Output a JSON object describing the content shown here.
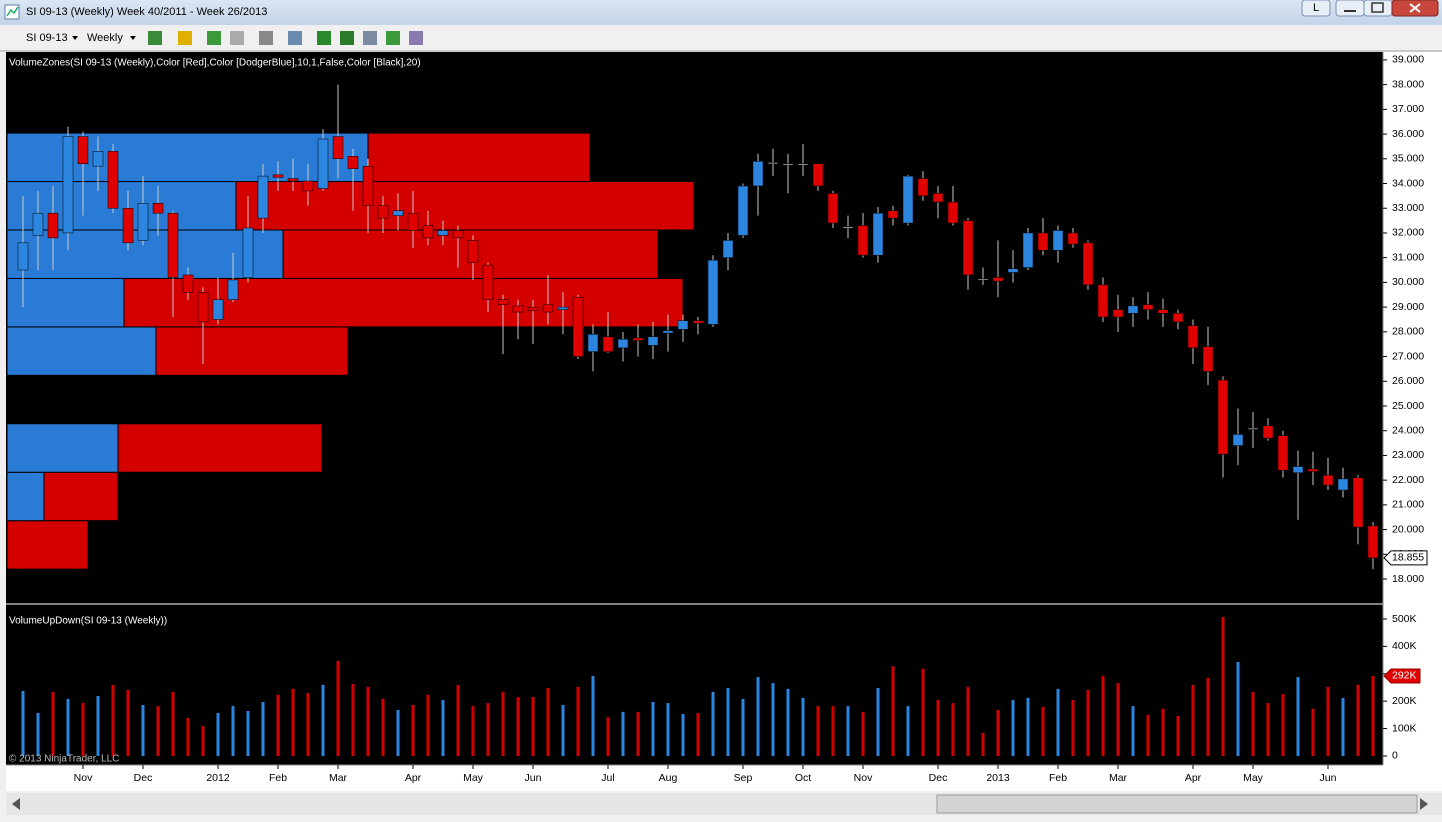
{
  "window": {
    "title": "SI 09-13 (Weekly)  Week 40/2011 - Week 26/2013",
    "button": "L"
  },
  "toolbar": {
    "instrument": "SI 09-13",
    "period": "Weekly"
  },
  "copyright": "© 2013 NinjaTrader, LLC",
  "chart_data": [
    {
      "type": "candlestick",
      "title": "VolumeZones(SI 09-13 (Weekly),Color [Red],Color [DodgerBlue],10,1,False,Color [Black],20)",
      "open": [
        30.5,
        31.9,
        32.8,
        32.0,
        35.9,
        34.7,
        35.3,
        33.0,
        31.7,
        33.2,
        32.8,
        30.3,
        29.6,
        28.5,
        29.3,
        30.2,
        32.6,
        34.35,
        34.2,
        34.1,
        33.8,
        35.9,
        35.1,
        34.7,
        33.1,
        32.7,
        32.8,
        32.3,
        31.9,
        32.1,
        31.7,
        30.7,
        29.3,
        29.05,
        29.0,
        29.1,
        28.9,
        29.4,
        27.2,
        27.8,
        27.35,
        27.75,
        27.45,
        27.95,
        28.1,
        28.45,
        28.3,
        31.0,
        31.9,
        33.9,
        34.8,
        34.75,
        34.75,
        34.8,
        33.6,
        32.2,
        32.3,
        31.1,
        32.9,
        32.4,
        34.2,
        33.6,
        33.25,
        32.5,
        30.15,
        30.2,
        30.4,
        30.6,
        32.0,
        31.3,
        32.0,
        31.6,
        29.9,
        28.9,
        28.75,
        29.1,
        28.9,
        28.75,
        28.25,
        27.4,
        26.05,
        23.4,
        24.1,
        24.2,
        23.8,
        22.3,
        22.45,
        22.2,
        21.6,
        22.1,
        20.15
      ],
      "high": [
        33.5,
        33.7,
        33.9,
        36.3,
        36.1,
        35.9,
        35.6,
        33.7,
        34.3,
        33.9,
        32.9,
        30.6,
        29.8,
        30.2,
        31.2,
        33.5,
        34.8,
        34.9,
        35.0,
        34.8,
        36.2,
        38.0,
        35.4,
        35.0,
        33.5,
        33.6,
        33.7,
        32.9,
        32.5,
        32.3,
        31.9,
        30.8,
        29.5,
        29.3,
        29.3,
        30.3,
        29.6,
        29.5,
        28.3,
        28.8,
        28.0,
        28.3,
        28.4,
        28.7,
        28.7,
        28.6,
        31.1,
        32.0,
        34.0,
        35.2,
        35.4,
        35.2,
        35.6,
        34.8,
        33.7,
        32.7,
        32.8,
        33.05,
        33.1,
        34.35,
        34.5,
        33.9,
        33.9,
        32.6,
        30.6,
        31.7,
        31.3,
        32.2,
        32.6,
        32.3,
        32.2,
        31.7,
        30.2,
        29.5,
        29.4,
        29.6,
        29.35,
        28.9,
        28.5,
        28.2,
        26.2,
        24.9,
        24.75,
        24.5,
        24.0,
        23.2,
        23.15,
        22.9,
        22.5,
        22.2,
        20.3
      ],
      "low": [
        29.0,
        30.5,
        30.5,
        31.3,
        32.7,
        33.7,
        32.8,
        31.3,
        31.5,
        31.9,
        28.6,
        29.3,
        26.7,
        28.3,
        29.2,
        30.0,
        32.0,
        33.7,
        33.7,
        33.1,
        33.7,
        34.2,
        32.9,
        32.0,
        32.0,
        32.1,
        31.4,
        31.5,
        31.5,
        30.6,
        30.1,
        28.8,
        27.1,
        27.7,
        27.5,
        28.3,
        27.9,
        26.9,
        26.4,
        27.15,
        26.8,
        27.0,
        26.9,
        27.2,
        27.6,
        27.9,
        28.2,
        30.5,
        31.8,
        32.7,
        34.3,
        33.6,
        34.3,
        33.7,
        32.2,
        31.8,
        31.0,
        30.8,
        32.3,
        32.3,
        33.3,
        32.6,
        32.3,
        29.7,
        29.9,
        29.4,
        30.0,
        30.5,
        31.1,
        30.8,
        31.4,
        29.7,
        28.4,
        28.0,
        28.2,
        28.5,
        28.2,
        28.1,
        26.7,
        25.85,
        22.1,
        22.6,
        23.3,
        23.6,
        22.1,
        20.4,
        21.8,
        21.6,
        21.3,
        19.4,
        18.4
      ],
      "close": [
        31.6,
        32.8,
        31.8,
        35.9,
        34.8,
        35.3,
        33.0,
        31.6,
        33.2,
        32.8,
        30.2,
        29.6,
        28.4,
        29.3,
        30.1,
        32.2,
        34.3,
        34.25,
        34.1,
        33.7,
        35.8,
        35.0,
        34.6,
        33.1,
        32.6,
        32.9,
        32.1,
        31.8,
        32.1,
        31.8,
        30.8,
        29.3,
        29.1,
        28.8,
        28.85,
        28.8,
        29.0,
        27.0,
        27.9,
        27.2,
        27.7,
        27.65,
        27.8,
        28.05,
        28.45,
        28.35,
        30.9,
        31.7,
        33.9,
        34.9,
        34.85,
        34.8,
        34.8,
        33.9,
        32.4,
        32.25,
        31.1,
        32.8,
        32.6,
        34.3,
        33.5,
        33.25,
        32.4,
        30.3,
        30.1,
        30.05,
        30.55,
        32.0,
        31.3,
        32.1,
        31.55,
        29.9,
        28.6,
        28.6,
        29.05,
        28.9,
        28.75,
        28.4,
        27.35,
        26.4,
        23.05,
        23.85,
        24.05,
        23.7,
        22.4,
        22.55,
        22.35,
        21.8,
        22.05,
        20.1,
        18.855
      ],
      "up_color": "#2c86e0",
      "down_color": "#e00000",
      "wick_color": "#c8c8c8",
      "ylim": [
        17.03,
        39.32
      ],
      "yticks": [
        {
          "value": 18,
          "label": "18.000"
        },
        {
          "value": 19,
          "label": "19.000"
        },
        {
          "value": 20,
          "label": "20.000"
        },
        {
          "value": 21,
          "label": "21.000"
        },
        {
          "value": 22,
          "label": "22.000"
        },
        {
          "value": 23,
          "label": "23.000"
        },
        {
          "value": 24,
          "label": "24.000"
        },
        {
          "value": 25,
          "label": "25.000"
        },
        {
          "value": 26,
          "label": "26.000"
        },
        {
          "value": 27,
          "label": "27.000"
        },
        {
          "value": 28,
          "label": "28.000"
        },
        {
          "value": 29,
          "label": "29.000"
        },
        {
          "value": 30,
          "label": "30.000"
        },
        {
          "value": 31,
          "label": "31.000"
        },
        {
          "value": 32,
          "label": "32.000"
        },
        {
          "value": 33,
          "label": "33.000"
        },
        {
          "value": 34,
          "label": "34.000"
        },
        {
          "value": 35,
          "label": "35.000"
        },
        {
          "value": 36,
          "label": "36.000"
        },
        {
          "value": 37,
          "label": "37.000"
        },
        {
          "value": 38,
          "label": "38.000"
        },
        {
          "value": 39,
          "label": "39.000"
        }
      ],
      "grid": false,
      "volume_zones": {
        "bins": [
          18.4,
          20.36,
          22.32,
          24.28,
          26.24,
          28.2,
          30.16,
          32.12,
          34.08,
          36.04,
          38.0
        ],
        "up_volume": [
          0,
          37,
          111,
          0,
          149,
          117,
          276,
          229,
          361,
          0
        ],
        "down_volume": [
          81,
          74,
          204,
          0,
          192,
          559,
          375,
          458,
          222,
          0
        ],
        "xlim": [
          0,
          1370
        ],
        "up_color": "#2a7bd6",
        "down_color": "#d40000"
      }
    },
    {
      "type": "bar",
      "title": "VolumeUpDown(SI 09-13 (Weekly))",
      "categories": [
        null,
        null,
        null,
        null,
        "Nov",
        null,
        null,
        null,
        "Dec",
        null,
        null,
        null,
        null,
        "2012",
        null,
        null,
        null,
        "Feb",
        null,
        null,
        null,
        "Mar",
        null,
        null,
        null,
        null,
        "Apr",
        null,
        null,
        null,
        "May",
        null,
        null,
        null,
        "Jun",
        null,
        null,
        null,
        null,
        "Jul",
        null,
        null,
        null,
        "Aug",
        null,
        null,
        null,
        null,
        "Sep",
        null,
        null,
        null,
        "Oct",
        null,
        null,
        null,
        "Nov",
        null,
        null,
        null,
        null,
        "Dec",
        null,
        null,
        null,
        "2013",
        null,
        null,
        null,
        "Feb",
        null,
        null,
        null,
        "Mar",
        null,
        null,
        null,
        null,
        "Apr",
        null,
        null,
        null,
        "May",
        null,
        null,
        null,
        null,
        "Jun",
        null,
        null,
        null
      ],
      "values": [
        237000,
        157000,
        234000,
        208000,
        193000,
        219000,
        259000,
        241000,
        186000,
        182000,
        234000,
        139000,
        109000,
        157000,
        182000,
        164000,
        197000,
        223000,
        245000,
        230000,
        259000,
        347000,
        263000,
        252000,
        208000,
        168000,
        186000,
        223000,
        204000,
        259000,
        182000,
        193000,
        234000,
        215000,
        215000,
        248000,
        186000,
        252000,
        292000,
        142000,
        161000,
        161000,
        197000,
        193000,
        153000,
        157000,
        234000,
        248000,
        208000,
        288000,
        266000,
        245000,
        212000,
        182000,
        182000,
        182000,
        161000,
        248000,
        328000,
        182000,
        318000,
        204000,
        193000,
        252000,
        84000,
        168000,
        204000,
        212000,
        179000,
        245000,
        204000,
        241000,
        292000,
        266000,
        182000,
        150000,
        172000,
        146000,
        259000,
        285000,
        507000,
        343000,
        234000,
        193000,
        226000,
        288000,
        172000,
        252000,
        212000,
        260000,
        292000
      ],
      "value_labels": [
        null,
        null,
        null,
        null,
        null,
        null,
        null,
        null,
        null,
        null,
        null,
        null,
        null,
        null,
        null,
        null,
        null,
        null,
        null,
        null,
        null,
        null,
        null,
        null,
        null,
        null,
        null,
        null,
        null,
        null,
        null,
        null,
        null,
        null,
        null,
        null,
        null,
        null,
        null,
        null,
        null,
        null,
        null,
        null,
        null,
        null,
        null,
        null,
        null,
        null,
        null,
        null,
        null,
        null,
        null,
        null,
        null,
        null,
        null,
        null,
        null,
        null,
        null,
        null,
        null,
        null,
        null,
        null,
        null,
        null,
        null,
        null,
        null,
        null,
        null,
        null,
        null,
        null,
        null,
        null,
        null,
        null,
        null,
        null,
        null,
        null,
        null,
        null,
        null,
        null,
        "292K"
      ],
      "up_color": "#2c86e0",
      "down_color": "#d40000",
      "ylim": [
        -33000,
        551000
      ],
      "yticks": [
        0,
        {
          "value": 100000,
          "label": "100K"
        },
        {
          "value": 200000,
          "label": "200K"
        },
        {
          "value": 300000,
          "label": "300K"
        },
        {
          "value": 400000,
          "label": "400K"
        },
        {
          "value": 500000,
          "label": "500K"
        }
      ]
    }
  ]
}
